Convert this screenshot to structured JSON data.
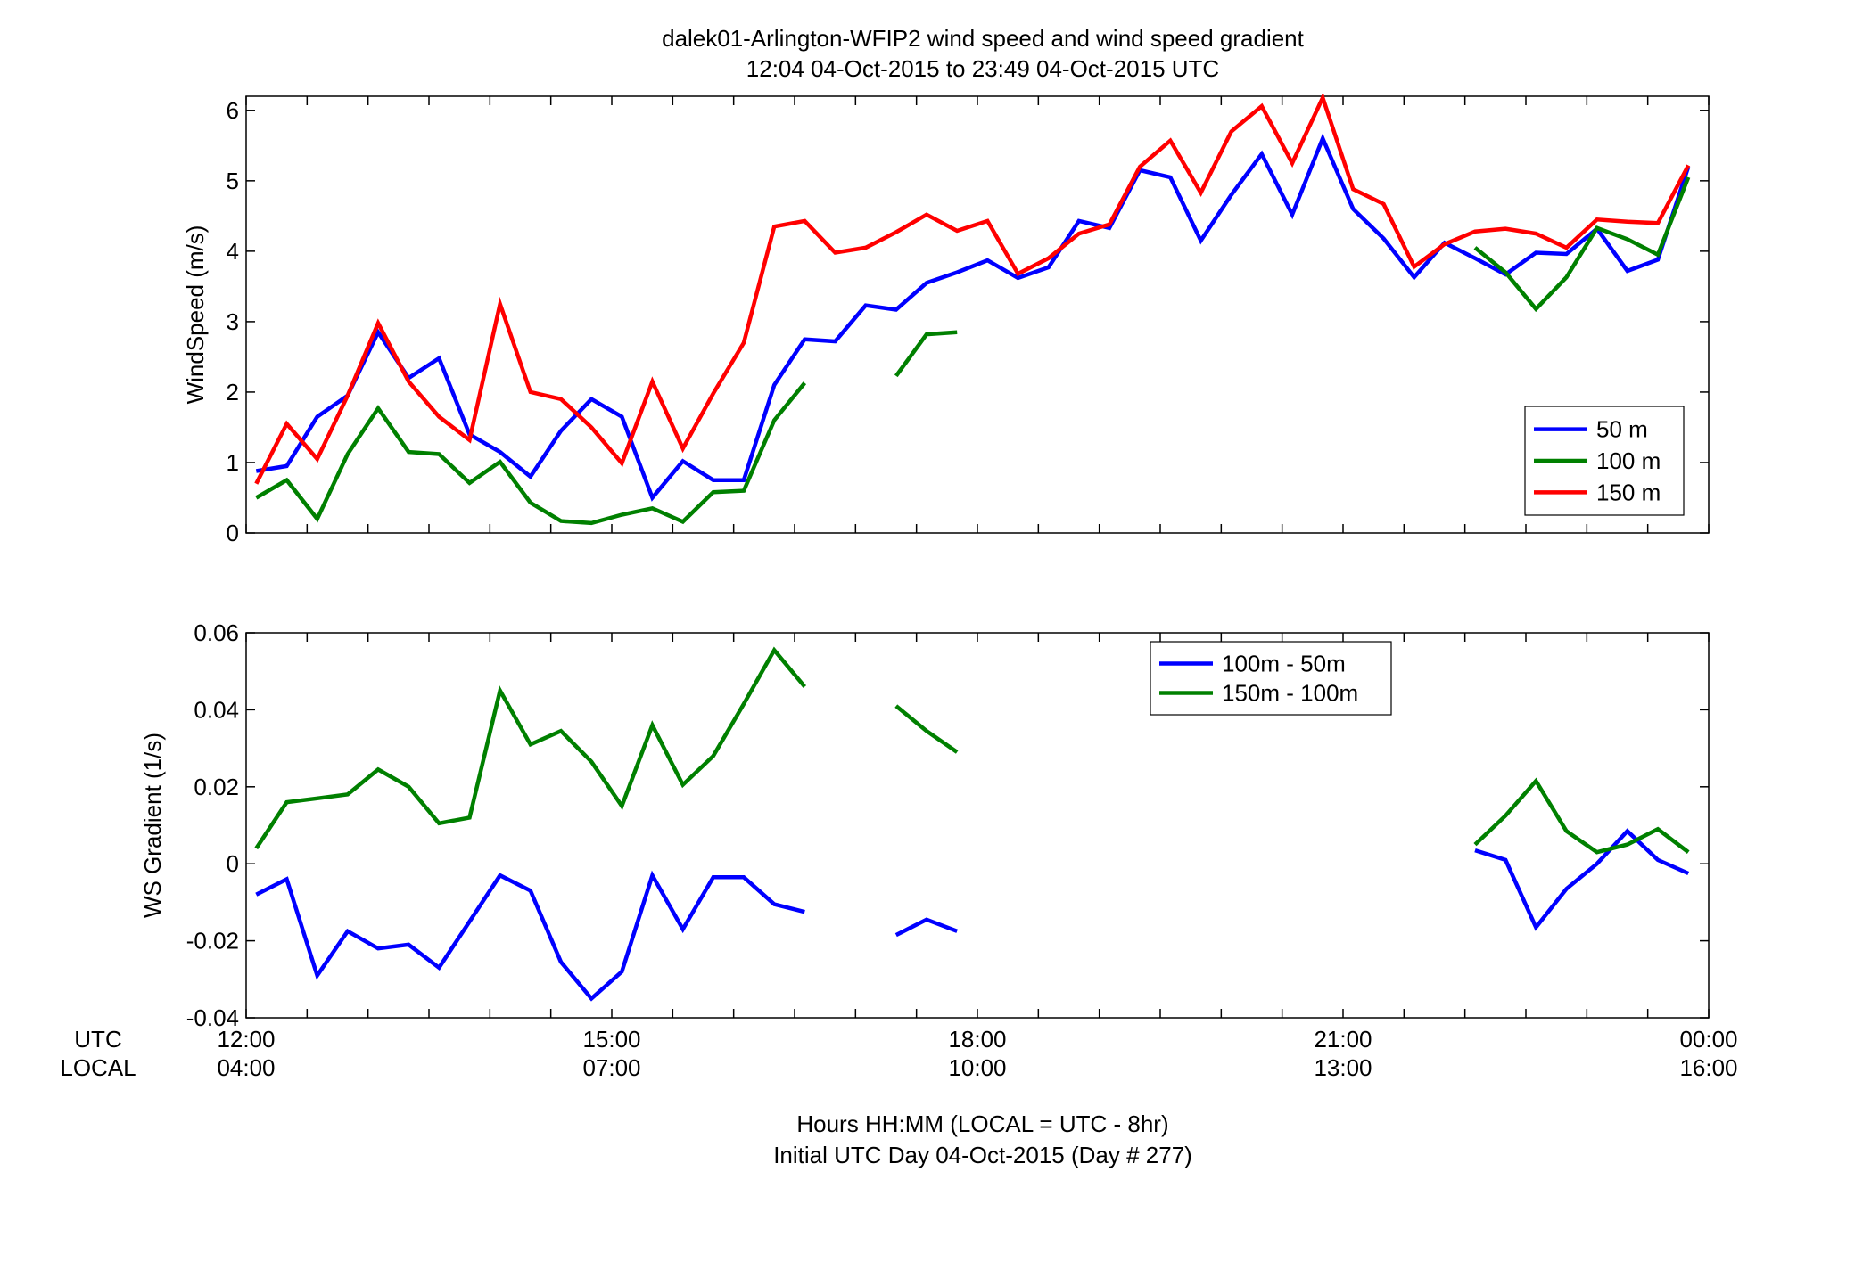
{
  "figure": {
    "title_line1": "dalek01-Arlington-WFIP2  wind speed and wind speed gradient",
    "title_line2": "12:04 04-Oct-2015 to 23:49 04-Oct-2015  UTC",
    "xlabel_line1": "Hours HH:MM  (LOCAL = UTC - 8hr)",
    "xlabel_line2": "Initial UTC Day 04-Oct-2015 (Day # 277)",
    "row_label_utc": "UTC",
    "row_label_local": "LOCAL",
    "xticks_utc": [
      "12:00",
      "15:00",
      "18:00",
      "21:00",
      "00:00"
    ],
    "xticks_local": [
      "04:00",
      "07:00",
      "10:00",
      "13:00",
      "16:00"
    ]
  },
  "chart_data": [
    {
      "type": "line",
      "ylabel": "WindSpeed (m/s)",
      "xlim": [
        12,
        24
      ],
      "ylim": [
        0,
        6.2
      ],
      "yticks": [
        0,
        1,
        2,
        3,
        4,
        5,
        6
      ],
      "ytick_labels": [
        "0",
        "1",
        "2",
        "3",
        "4",
        "5",
        "6"
      ],
      "legend_position": "bottom-right",
      "x_unit": "hours UTC",
      "x": [
        12.083,
        12.333,
        12.583,
        12.833,
        13.083,
        13.333,
        13.583,
        13.833,
        14.083,
        14.333,
        14.583,
        14.833,
        15.083,
        15.333,
        15.583,
        15.833,
        16.083,
        16.333,
        16.583,
        16.833,
        17.083,
        17.333,
        17.583,
        17.833,
        18.083,
        18.333,
        18.583,
        18.833,
        19.083,
        19.333,
        19.583,
        19.833,
        20.083,
        20.333,
        20.583,
        20.833,
        21.083,
        21.333,
        21.583,
        21.833,
        22.083,
        22.333,
        22.583,
        22.833,
        23.083,
        23.333,
        23.583,
        23.833
      ],
      "series": [
        {
          "name": "50 m",
          "color": "#0000ff",
          "values": [
            0.88,
            0.95,
            1.65,
            1.95,
            2.85,
            2.2,
            2.48,
            1.4,
            1.15,
            0.8,
            1.45,
            1.9,
            1.65,
            0.5,
            1.02,
            0.75,
            0.75,
            2.1,
            2.75,
            2.72,
            3.23,
            3.17,
            3.55,
            3.7,
            3.87,
            3.62,
            3.77,
            4.43,
            4.33,
            5.15,
            5.05,
            4.15,
            4.8,
            5.38,
            4.52,
            5.6,
            4.6,
            4.18,
            3.63,
            4.12,
            3.9,
            3.67,
            3.98,
            3.96,
            4.32,
            3.72,
            3.88,
            5.2
          ]
        },
        {
          "name": "100 m",
          "color": "#008000",
          "values": [
            0.5,
            0.75,
            0.2,
            1.12,
            1.77,
            1.15,
            1.12,
            0.71,
            1.01,
            0.43,
            0.17,
            0.14,
            0.26,
            0.35,
            0.16,
            0.58,
            0.6,
            1.6,
            2.13,
            null,
            null,
            2.23,
            2.82,
            2.85,
            null,
            null,
            null,
            null,
            null,
            null,
            null,
            null,
            null,
            null,
            null,
            null,
            null,
            null,
            null,
            null,
            4.05,
            3.7,
            3.18,
            3.63,
            4.33,
            4.17,
            3.95,
            5.05
          ]
        },
        {
          "name": "150 m",
          "color": "#ff0000",
          "values": [
            0.7,
            1.55,
            1.05,
            1.95,
            2.98,
            2.15,
            1.65,
            1.32,
            3.25,
            2.0,
            1.9,
            1.5,
            0.99,
            2.15,
            1.2,
            1.98,
            2.7,
            4.35,
            4.43,
            3.98,
            4.05,
            4.27,
            4.52,
            4.29,
            4.43,
            3.68,
            3.9,
            4.25,
            4.38,
            5.2,
            5.57,
            4.83,
            5.7,
            6.06,
            5.25,
            6.18,
            4.88,
            4.67,
            3.78,
            4.1,
            4.28,
            4.32,
            4.25,
            4.05,
            4.45,
            4.42,
            4.4,
            5.22
          ]
        }
      ]
    },
    {
      "type": "line",
      "ylabel": "WS Gradient (1/s)",
      "xlim": [
        12,
        24
      ],
      "ylim": [
        -0.04,
        0.06
      ],
      "yticks": [
        -0.04,
        -0.02,
        0,
        0.02,
        0.04,
        0.06
      ],
      "ytick_labels": [
        "-0.04",
        "-0.02",
        "0",
        "0.02",
        "0.04",
        "0.06"
      ],
      "legend_position": "top-right",
      "x_unit": "hours UTC",
      "x": [
        12.083,
        12.333,
        12.583,
        12.833,
        13.083,
        13.333,
        13.583,
        13.833,
        14.083,
        14.333,
        14.583,
        14.833,
        15.083,
        15.333,
        15.583,
        15.833,
        16.083,
        16.333,
        16.583,
        16.833,
        17.083,
        17.333,
        17.583,
        17.833,
        18.083,
        18.333,
        18.583,
        18.833,
        19.083,
        19.333,
        19.583,
        19.833,
        20.083,
        20.333,
        20.583,
        20.833,
        21.083,
        21.333,
        21.583,
        21.833,
        22.083,
        22.333,
        22.583,
        22.833,
        23.083,
        23.333,
        23.583,
        23.833
      ],
      "series": [
        {
          "name": "100m - 50m",
          "color": "#0000ff",
          "values": [
            -0.008,
            -0.004,
            -0.029,
            -0.0175,
            -0.022,
            -0.021,
            -0.027,
            -0.015,
            -0.003,
            -0.007,
            -0.0255,
            -0.035,
            -0.028,
            -0.003,
            -0.017,
            -0.0035,
            -0.0035,
            -0.0105,
            -0.0125,
            null,
            null,
            -0.0185,
            -0.0145,
            -0.0175,
            null,
            null,
            null,
            null,
            null,
            null,
            null,
            null,
            null,
            null,
            null,
            null,
            null,
            null,
            null,
            null,
            0.0035,
            0.001,
            -0.0165,
            -0.0065,
            0.0,
            0.0085,
            0.001,
            -0.0025
          ]
        },
        {
          "name": "150m - 100m",
          "color": "#008000",
          "values": [
            0.004,
            0.016,
            0.017,
            0.018,
            0.0245,
            0.02,
            0.0105,
            0.012,
            0.045,
            0.031,
            0.0345,
            0.0265,
            0.015,
            0.036,
            0.0205,
            0.028,
            0.0415,
            0.0555,
            0.046,
            null,
            null,
            0.041,
            0.0345,
            0.029,
            null,
            null,
            null,
            null,
            null,
            null,
            null,
            null,
            null,
            null,
            null,
            null,
            null,
            null,
            null,
            null,
            0.005,
            0.0125,
            0.0215,
            0.0085,
            0.003,
            0.005,
            0.009,
            0.003
          ]
        }
      ]
    }
  ]
}
